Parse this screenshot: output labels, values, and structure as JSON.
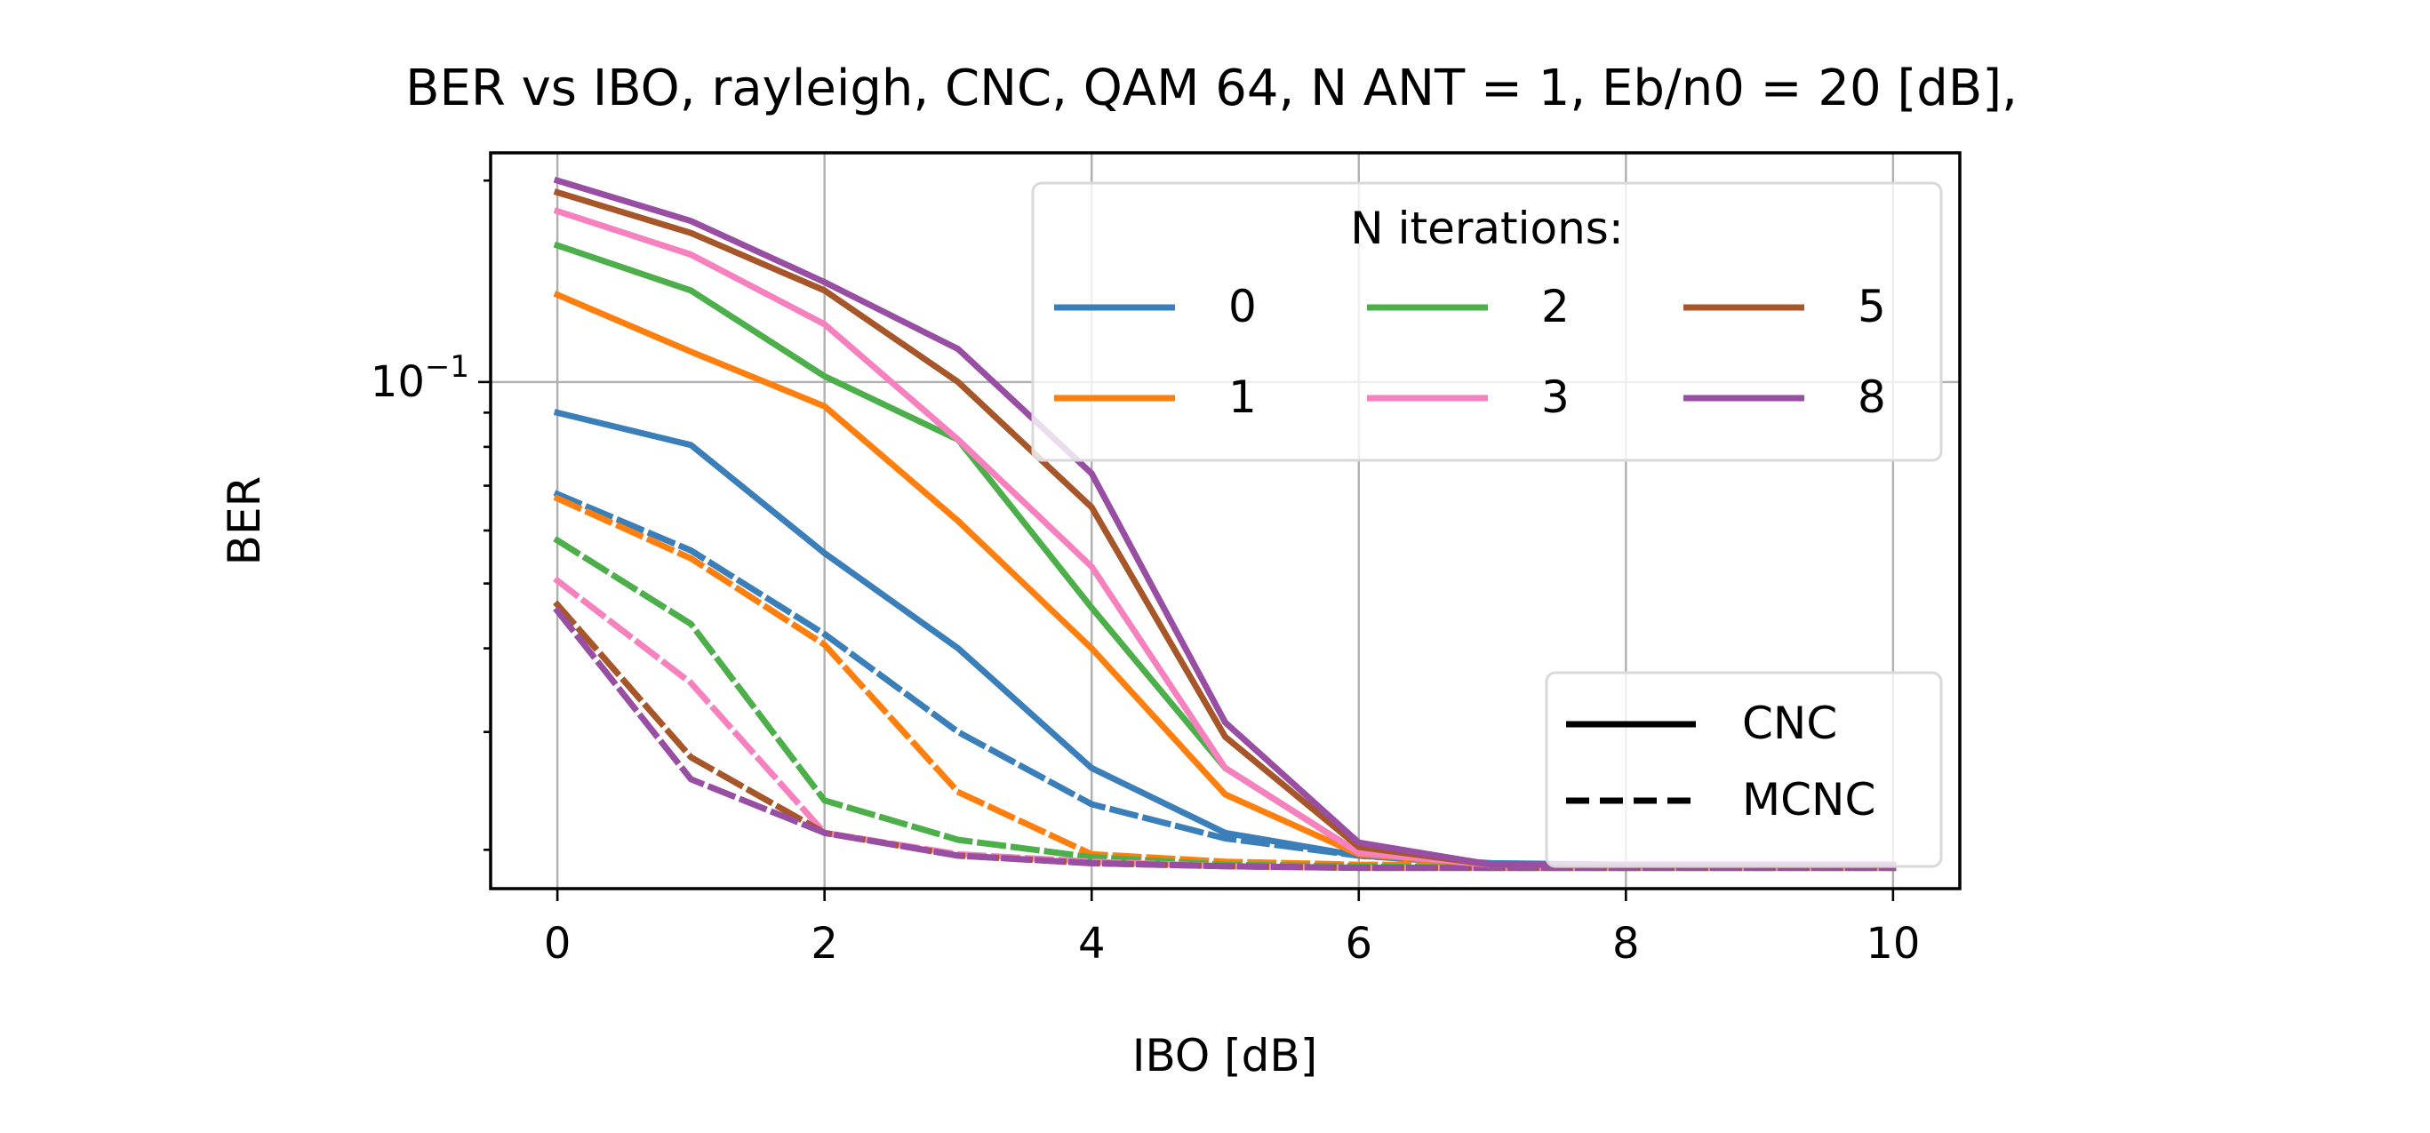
{
  "chart_data": {
    "type": "line",
    "title": "BER vs IBO, rayleigh, CNC, QAM 64, N ANT = 1, Eb/n0 = 20 [dB],",
    "xlabel": "IBO [dB]",
    "ylabel": "BER",
    "xlim": [
      -0.5,
      10.5
    ],
    "ylim": [
      0.0175,
      0.22
    ],
    "yscale": "log",
    "grid": true,
    "x_ticks": [
      0,
      2,
      4,
      6,
      8,
      10
    ],
    "x_tick_labels": [
      "0",
      "2",
      "4",
      "6",
      "8",
      "10"
    ],
    "y_major_ticks": [
      0.1
    ],
    "y_major_tick_labels": [
      "10",
      "−1"
    ],
    "y_minor_ticks": [
      0.02,
      0.03,
      0.04,
      0.05,
      0.06,
      0.07,
      0.08,
      0.09,
      0.2
    ],
    "x": [
      0,
      1,
      2,
      3,
      4,
      5,
      6,
      7,
      8,
      9,
      10
    ],
    "series": [
      {
        "name": "0",
        "color": "#3a7fb9",
        "style": "solid",
        "values": [
          0.09,
          0.0805,
          0.0555,
          0.04,
          0.0265,
          0.0212,
          0.0196,
          0.0191,
          0.019,
          0.019,
          0.019
        ]
      },
      {
        "name": "1",
        "color": "#ff7f0e",
        "style": "solid",
        "values": [
          0.135,
          0.111,
          0.092,
          0.062,
          0.04,
          0.0242,
          0.0197,
          0.019,
          0.019,
          0.019,
          0.019
        ]
      },
      {
        "name": "2",
        "color": "#4daf4a",
        "style": "solid",
        "values": [
          0.16,
          0.137,
          0.102,
          0.082,
          0.046,
          0.0265,
          0.0198,
          0.019,
          0.019,
          0.019,
          0.019
        ]
      },
      {
        "name": "3",
        "color": "#f781bf",
        "style": "solid",
        "values": [
          0.18,
          0.155,
          0.122,
          0.082,
          0.053,
          0.0265,
          0.0198,
          0.019,
          0.019,
          0.019,
          0.019
        ]
      },
      {
        "name": "5",
        "color": "#a65628",
        "style": "solid",
        "values": [
          0.192,
          0.167,
          0.137,
          0.1,
          0.065,
          0.0295,
          0.0202,
          0.019,
          0.019,
          0.019,
          0.019
        ]
      },
      {
        "name": "8",
        "color": "#984ea3",
        "style": "solid",
        "values": [
          0.2,
          0.174,
          0.141,
          0.112,
          0.073,
          0.031,
          0.0205,
          0.019,
          0.019,
          0.019,
          0.019
        ]
      },
      {
        "name": "0",
        "color": "#3a7fb9",
        "style": "dashed",
        "values": [
          0.068,
          0.056,
          0.042,
          0.03,
          0.0234,
          0.0208,
          0.0196,
          0.019,
          0.019,
          0.019,
          0.019
        ]
      },
      {
        "name": "1",
        "color": "#ff7f0e",
        "style": "dashed",
        "values": [
          0.067,
          0.0545,
          0.0405,
          0.0244,
          0.0197,
          0.0192,
          0.019,
          0.019,
          0.019,
          0.019,
          0.019
        ]
      },
      {
        "name": "2",
        "color": "#4daf4a",
        "style": "dashed",
        "values": [
          0.058,
          0.0435,
          0.0237,
          0.0207,
          0.0195,
          0.019,
          0.0189,
          0.0188,
          0.0188,
          0.0188,
          0.0188
        ]
      },
      {
        "name": "3",
        "color": "#f781bf",
        "style": "dashed",
        "values": [
          0.0505,
          0.0355,
          0.0212,
          0.0197,
          0.0192,
          0.0189,
          0.0188,
          0.0188,
          0.0188,
          0.0188,
          0.0188
        ]
      },
      {
        "name": "5",
        "color": "#a65628",
        "style": "dashed",
        "values": [
          0.0465,
          0.0275,
          0.0212,
          0.0196,
          0.0191,
          0.0189,
          0.0188,
          0.0188,
          0.0188,
          0.0188,
          0.0188
        ]
      },
      {
        "name": "8",
        "color": "#984ea3",
        "style": "dashed",
        "values": [
          0.0455,
          0.0255,
          0.0212,
          0.0196,
          0.0191,
          0.0189,
          0.0188,
          0.0188,
          0.0188,
          0.0188,
          0.0188
        ]
      }
    ],
    "legend_iterations": {
      "title": "N iterations:",
      "placement": "top-right",
      "entries": [
        {
          "label": "0",
          "color": "#3a7fb9"
        },
        {
          "label": "1",
          "color": "#ff7f0e"
        },
        {
          "label": "2",
          "color": "#4daf4a"
        },
        {
          "label": "3",
          "color": "#f781bf"
        },
        {
          "label": "5",
          "color": "#a65628"
        },
        {
          "label": "8",
          "color": "#984ea3"
        }
      ]
    },
    "legend_styles": {
      "placement": "lower-right",
      "entries": [
        {
          "label": "CNC",
          "style": "solid"
        },
        {
          "label": "MCNC",
          "style": "dashed"
        }
      ]
    }
  }
}
